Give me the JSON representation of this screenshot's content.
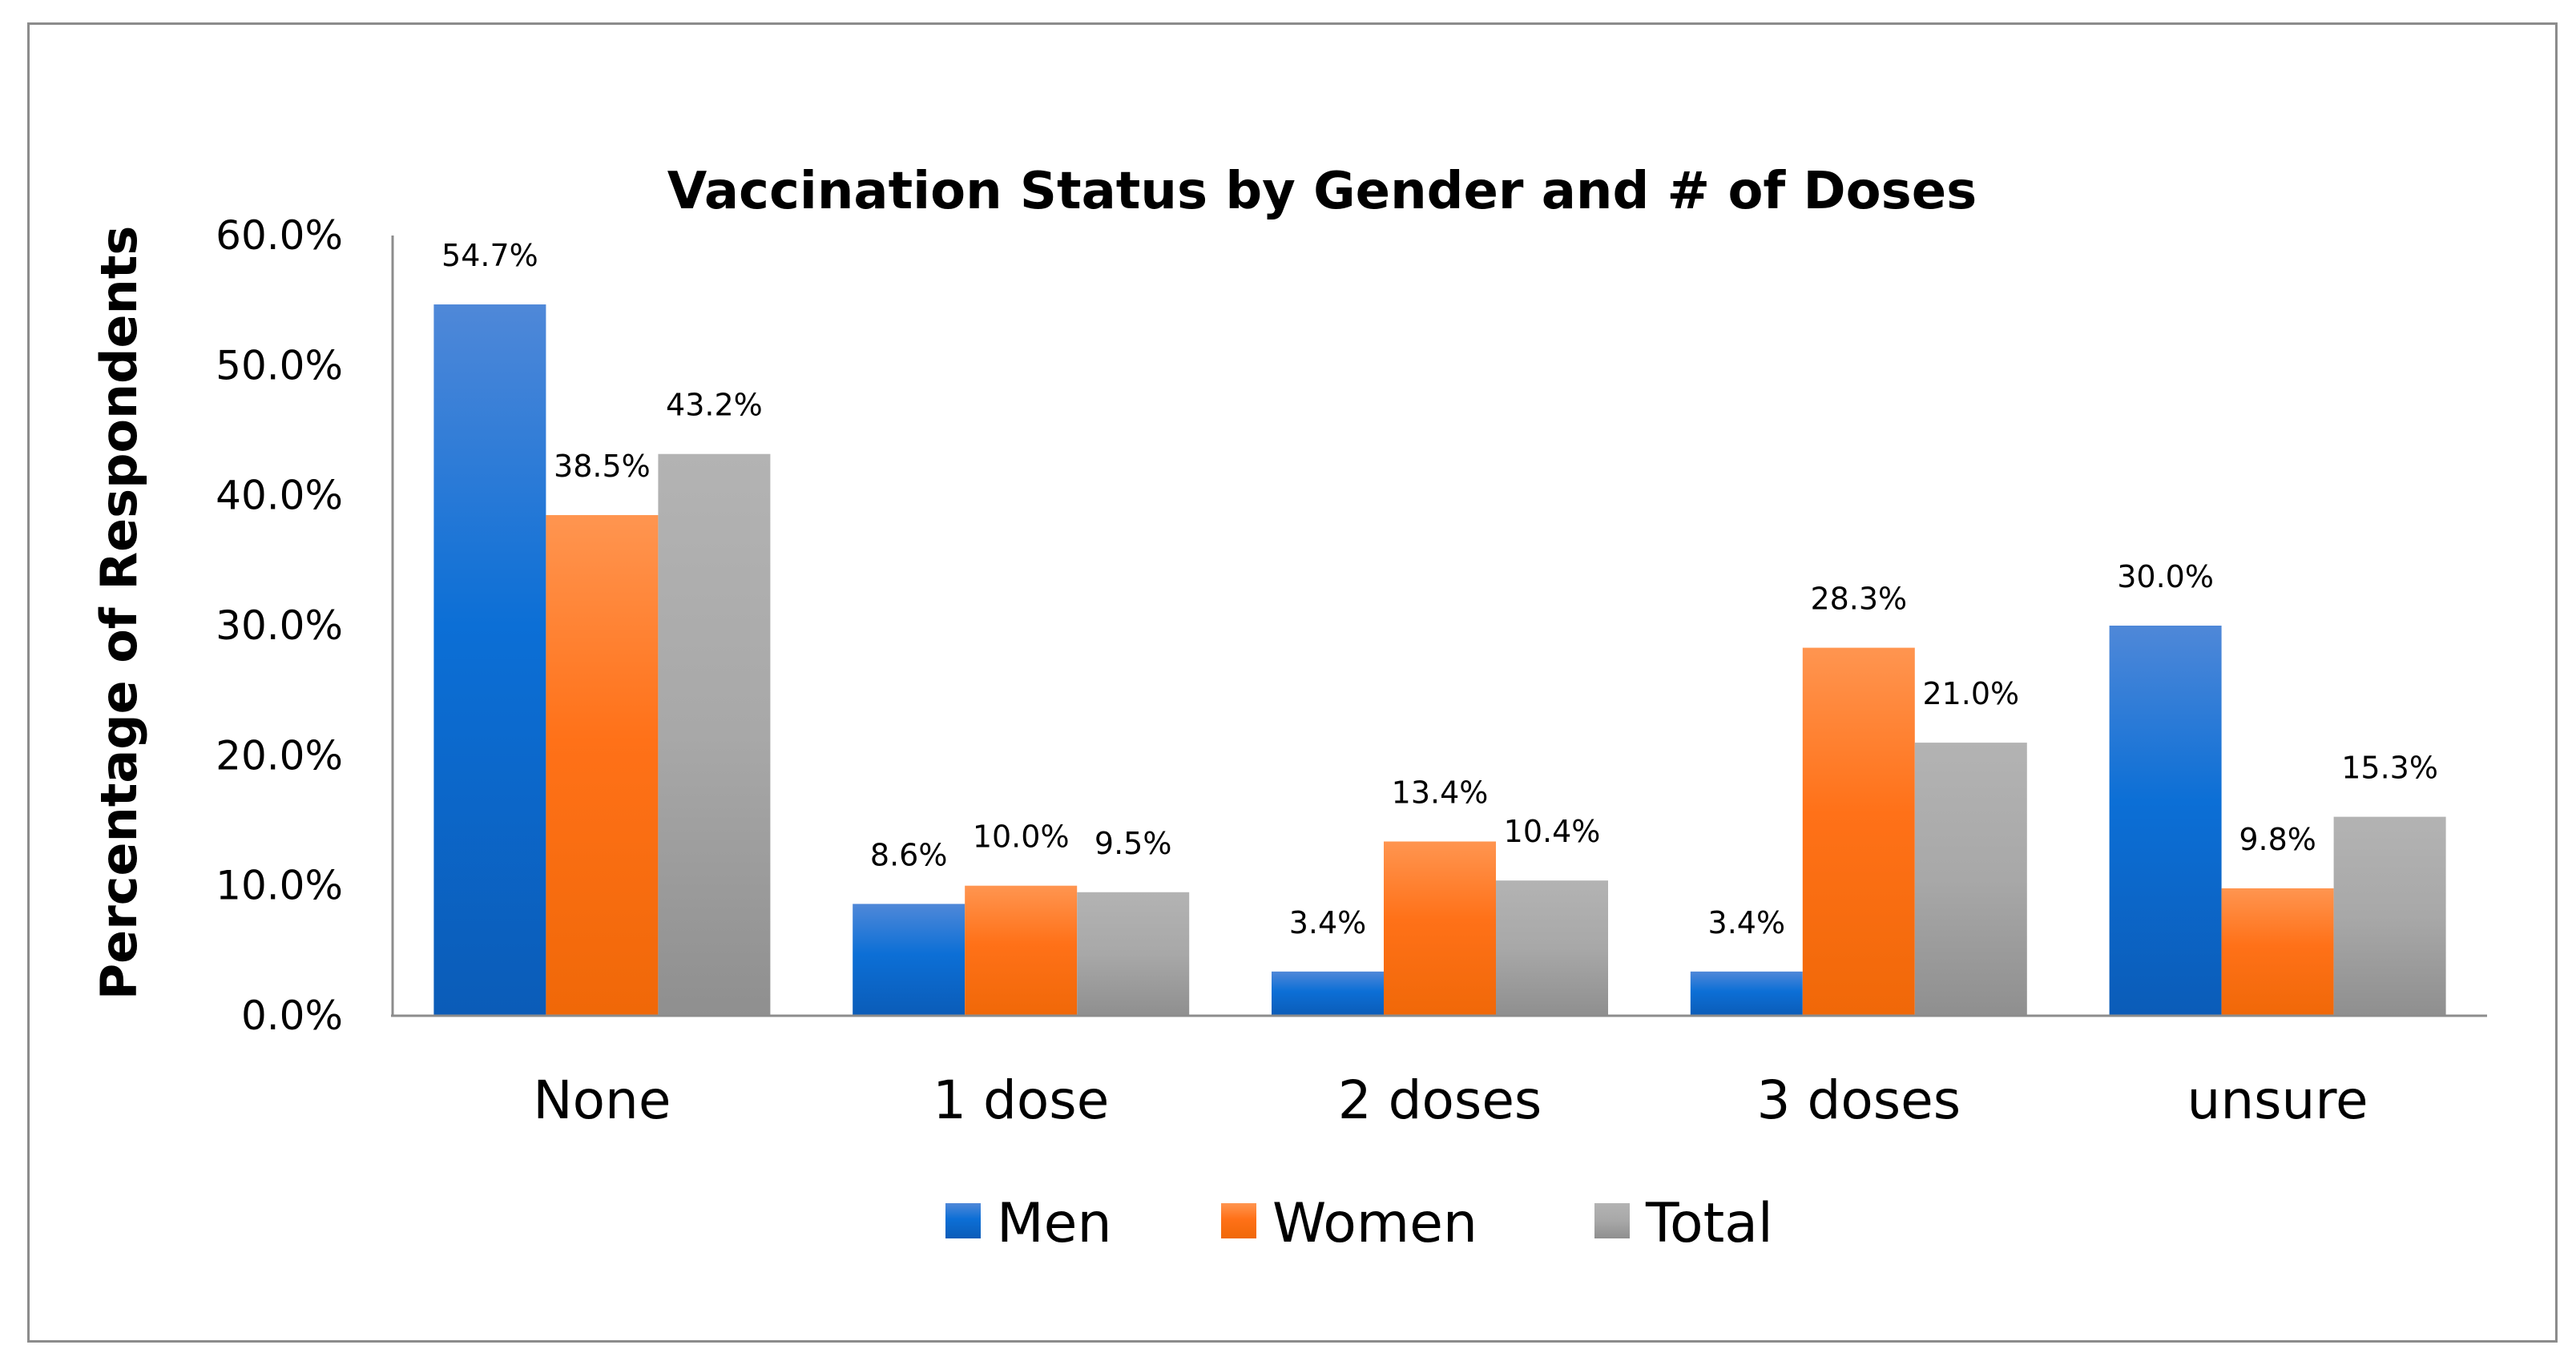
{
  "chart_data": {
    "type": "bar",
    "title": "Vaccination Status by Gender and # of Doses",
    "xlabel": "",
    "ylabel": "Percentage of Respondents",
    "ylim": [
      0,
      60
    ],
    "yticks": [
      0,
      10,
      20,
      30,
      40,
      50,
      60
    ],
    "ytick_labels": [
      "0.0%",
      "10.0%",
      "20.0%",
      "30.0%",
      "40.0%",
      "50.0%",
      "60.0%"
    ],
    "categories": [
      "None",
      "1 dose",
      "2 doses",
      "3 doses",
      "unsure"
    ],
    "series": [
      {
        "name": "Men",
        "color": "#1f6fd6",
        "values": [
          54.7,
          8.6,
          3.4,
          3.4,
          30.0
        ],
        "labels": [
          "54.7%",
          "8.6%",
          "3.4%",
          "3.4%",
          "30.0%"
        ]
      },
      {
        "name": "Women",
        "color": "#ff7a22",
        "values": [
          38.5,
          10.0,
          13.4,
          28.3,
          9.8
        ],
        "labels": [
          "38.5%",
          "10.0%",
          "13.4%",
          "28.3%",
          "9.8%"
        ]
      },
      {
        "name": "Total",
        "color": "#a5a5a5",
        "values": [
          43.2,
          9.5,
          10.4,
          21.0,
          15.3
        ],
        "labels": [
          "43.2%",
          "9.5%",
          "10.4%",
          "21.0%",
          "15.3%"
        ]
      }
    ],
    "legend_position": "bottom",
    "grid": false
  }
}
